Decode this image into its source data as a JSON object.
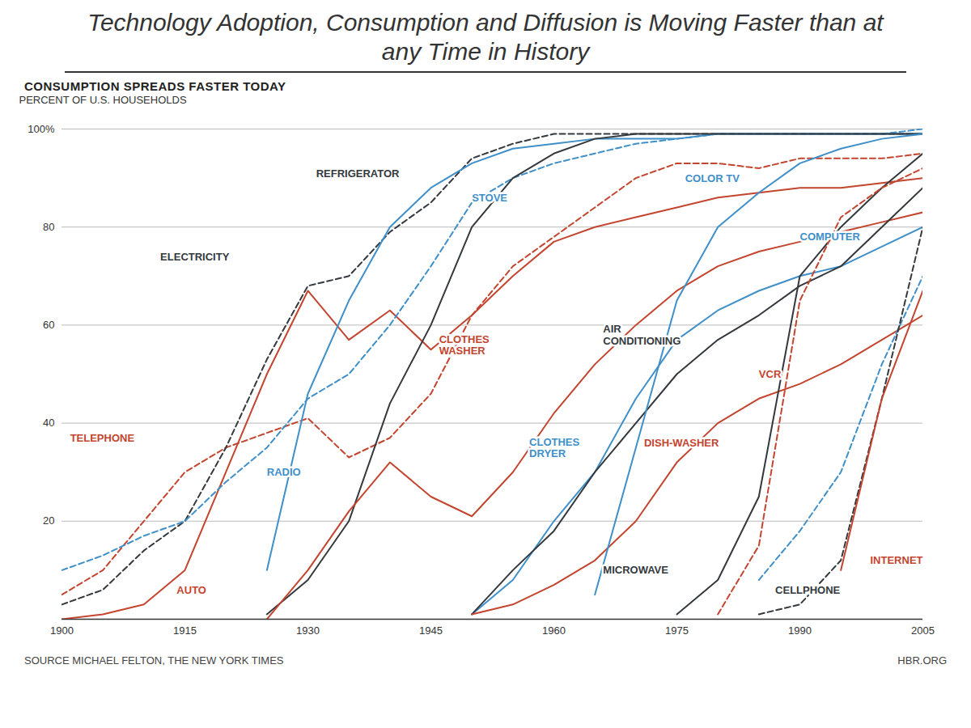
{
  "chart_data": {
    "type": "line",
    "title": "Technology Adoption, Consumption and Diffusion is Moving Faster than at any Time in History",
    "subtitle": "CONSUMPTION SPREADS FASTER TODAY",
    "ylabel": "PERCENT OF U.S. HOUSEHOLDS",
    "source": "SOURCE MICHAEL FELTON, THE NEW YORK TIMES",
    "credit": "HBR.ORG",
    "x": [
      1900,
      1905,
      1910,
      1915,
      1920,
      1925,
      1930,
      1935,
      1940,
      1945,
      1950,
      1955,
      1960,
      1965,
      1970,
      1975,
      1980,
      1985,
      1990,
      1995,
      2000,
      2005
    ],
    "xlim": [
      1900,
      2005
    ],
    "xticks": [
      1900,
      1915,
      1930,
      1945,
      1960,
      1975,
      1990,
      2005
    ],
    "ylim": [
      0,
      100
    ],
    "yticks": [
      20,
      40,
      60,
      80,
      {
        "value": 100,
        "label": "100%"
      }
    ],
    "grid": true,
    "series": [
      {
        "name": "TELEPHONE",
        "color": "#c4452f",
        "line_style": "dashed",
        "values": [
          5,
          10,
          20,
          30,
          35,
          38,
          41,
          33,
          37,
          46,
          62,
          72,
          78,
          84,
          90,
          93,
          93,
          92,
          94,
          94,
          94,
          95
        ]
      },
      {
        "name": "AUTO",
        "color": "#c4452f",
        "line_style": "solid",
        "values": [
          0,
          1,
          3,
          10,
          30,
          50,
          67,
          57,
          63,
          55,
          62,
          70,
          77,
          80,
          82,
          84,
          86,
          87,
          88,
          88,
          89,
          90
        ]
      },
      {
        "name": "ELECTRICITY",
        "color": "#34393e",
        "line_style": "dashed",
        "values": [
          3,
          6,
          14,
          20,
          35,
          53,
          68,
          70,
          79,
          85,
          94,
          97,
          99,
          99,
          99,
          99,
          99,
          99,
          99,
          99,
          99,
          99
        ]
      },
      {
        "name": "RADIO",
        "color": "#3f8fc9",
        "line_style": "solid",
        "values": [
          null,
          null,
          null,
          null,
          null,
          10,
          46,
          65,
          80,
          88,
          93,
          96,
          97,
          98,
          98,
          98,
          99,
          99,
          99,
          99,
          99,
          99
        ]
      },
      {
        "name": "STOVE",
        "color": "#3f8fc9",
        "line_style": "dashed",
        "values": [
          10,
          13,
          17,
          20,
          28,
          35,
          45,
          50,
          60,
          72,
          85,
          90,
          93,
          95,
          97,
          98,
          99,
          99,
          99,
          99,
          99,
          100
        ]
      },
      {
        "name": "REFRIGERATOR",
        "color": "#34393e",
        "line_style": "solid",
        "values": [
          null,
          null,
          null,
          null,
          null,
          1,
          8,
          20,
          44,
          60,
          80,
          90,
          95,
          98,
          99,
          99,
          99,
          99,
          99,
          99,
          99,
          99
        ]
      },
      {
        "name": "CLOTHES WASHER",
        "color": "#c4452f",
        "line_style": "solid",
        "values": [
          null,
          null,
          null,
          null,
          null,
          0,
          10,
          22,
          32,
          25,
          21,
          30,
          42,
          52,
          60,
          67,
          72,
          75,
          77,
          79,
          81,
          83
        ]
      },
      {
        "name": "CLOTHES DRYER",
        "color": "#3f8fc9",
        "line_style": "solid",
        "values": [
          null,
          null,
          null,
          null,
          null,
          null,
          null,
          null,
          null,
          null,
          1,
          8,
          20,
          30,
          45,
          57,
          63,
          67,
          70,
          72,
          76,
          80
        ]
      },
      {
        "name": "AIR CONDITIONING",
        "color": "#34393e",
        "line_style": "solid",
        "values": [
          null,
          null,
          null,
          null,
          null,
          null,
          null,
          null,
          null,
          null,
          1,
          10,
          18,
          30,
          40,
          50,
          57,
          62,
          68,
          72,
          80,
          88
        ]
      },
      {
        "name": "DISH-WASHER",
        "color": "#c4452f",
        "line_style": "solid",
        "values": [
          null,
          null,
          null,
          null,
          null,
          null,
          null,
          null,
          null,
          null,
          1,
          3,
          7,
          12,
          20,
          32,
          40,
          45,
          48,
          52,
          57,
          62
        ]
      },
      {
        "name": "MICROWAVE",
        "color": "#34393e",
        "line_style": "solid",
        "values": [
          null,
          null,
          null,
          null,
          null,
          null,
          null,
          null,
          null,
          null,
          null,
          null,
          null,
          null,
          null,
          1,
          8,
          25,
          70,
          80,
          88,
          95
        ]
      },
      {
        "name": "COLOR TV",
        "color": "#3f8fc9",
        "line_style": "solid",
        "values": [
          null,
          null,
          null,
          null,
          null,
          null,
          null,
          null,
          null,
          null,
          null,
          null,
          null,
          5,
          35,
          65,
          80,
          87,
          93,
          96,
          98,
          99
        ]
      },
      {
        "name": "VCR",
        "color": "#c4452f",
        "line_style": "dashed",
        "values": [
          null,
          null,
          null,
          null,
          null,
          null,
          null,
          null,
          null,
          null,
          null,
          null,
          null,
          null,
          null,
          null,
          1,
          15,
          65,
          82,
          88,
          92
        ]
      },
      {
        "name": "COMPUTER",
        "color": "#3f8fc9",
        "line_style": "dashed",
        "values": [
          null,
          null,
          null,
          null,
          null,
          null,
          null,
          null,
          null,
          null,
          null,
          null,
          null,
          null,
          null,
          null,
          null,
          8,
          18,
          30,
          52,
          70
        ]
      },
      {
        "name": "CELLPHONE",
        "color": "#34393e",
        "line_style": "dashed",
        "values": [
          null,
          null,
          null,
          null,
          null,
          null,
          null,
          null,
          null,
          null,
          null,
          null,
          null,
          null,
          null,
          null,
          null,
          1,
          3,
          12,
          45,
          80
        ]
      },
      {
        "name": "INTERNET",
        "color": "#c4452f",
        "line_style": "solid",
        "values": [
          null,
          null,
          null,
          null,
          null,
          null,
          null,
          null,
          null,
          null,
          null,
          null,
          null,
          null,
          null,
          null,
          null,
          null,
          null,
          10,
          45,
          67
        ]
      }
    ]
  }
}
